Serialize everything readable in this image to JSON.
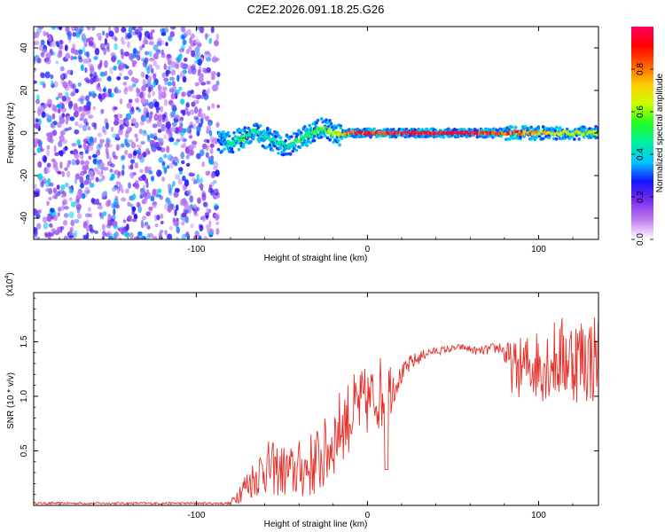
{
  "figure_title": "C2E2.2026.091.18.25.G26",
  "colors": {
    "snr_line": "#e8302a",
    "background": "#ffffff",
    "axis": "#000000",
    "spectrogram_scatter": "#6a1bd8"
  },
  "chart_data": [
    {
      "type": "heatmap",
      "name": "spectrogram",
      "title": "C2E2.2026.091.18.25.G26",
      "xlabel": "Height of straight line (km)",
      "ylabel": "Frequency (Hz)",
      "xlim": [
        -195,
        135
      ],
      "ylim": [
        -50,
        50
      ],
      "xticks": [
        -100,
        0,
        100
      ],
      "yticks": [
        -40,
        -20,
        0,
        20,
        40
      ],
      "noise_region": {
        "x_from": -195,
        "x_to": -87,
        "freq_from": -50,
        "freq_to": 50
      },
      "signal_track": [
        {
          "x": -87,
          "f": -4,
          "amp": 0.3
        },
        {
          "x": -80,
          "f": -5,
          "amp": 0.45
        },
        {
          "x": -72,
          "f": -2,
          "amp": 0.55
        },
        {
          "x": -66,
          "f": 1,
          "amp": 0.5
        },
        {
          "x": -60,
          "f": -2,
          "amp": 0.45
        },
        {
          "x": -52,
          "f": -5,
          "amp": 0.5
        },
        {
          "x": -46,
          "f": -6,
          "amp": 0.45
        },
        {
          "x": -40,
          "f": -3,
          "amp": 0.55
        },
        {
          "x": -34,
          "f": -1,
          "amp": 0.5
        },
        {
          "x": -28,
          "f": 2,
          "amp": 0.55
        },
        {
          "x": -22,
          "f": 1,
          "amp": 0.6
        },
        {
          "x": -16,
          "f": -1,
          "amp": 0.7
        },
        {
          "x": -8,
          "f": 0,
          "amp": 0.85
        },
        {
          "x": 0,
          "f": 0,
          "amp": 0.9
        },
        {
          "x": 20,
          "f": 0,
          "amp": 0.95
        },
        {
          "x": 60,
          "f": 0,
          "amp": 0.95
        },
        {
          "x": 85,
          "f": 0,
          "amp": 0.85
        },
        {
          "x": 105,
          "f": 0,
          "amp": 0.7
        },
        {
          "x": 135,
          "f": 0,
          "amp": 0.65
        }
      ],
      "colorbar": {
        "label": "Normalized spectral amplitude",
        "range": [
          0,
          1
        ],
        "ticks": [
          "0.0",
          "0.2",
          "0.4",
          "0.6",
          "0.8"
        ],
        "tick_values": [
          0,
          0.2,
          0.4,
          0.6,
          0.8
        ],
        "stops": [
          "#ffffff",
          "#c07ef0",
          "#7a2cf0",
          "#1515ff",
          "#00c8ff",
          "#00f0a0",
          "#20ff20",
          "#c8ff00",
          "#ffcc00",
          "#ff6000",
          "#ff0000",
          "#ff0060"
        ]
      }
    },
    {
      "type": "line",
      "name": "snr",
      "title": "",
      "xlabel": "Height of straight line (km)",
      "ylabel": "SNR (10 * v/v)",
      "exponent_label": "(x10",
      "exponent_power": "4",
      "exponent_close": ")",
      "xlim": [
        -195,
        135
      ],
      "ylim": [
        0,
        1.95
      ],
      "xticks": [
        -100,
        0,
        100
      ],
      "yticks": [
        0.5,
        1.0,
        1.5
      ],
      "ytick_labels": [
        "0.5",
        "1.0",
        "1.5"
      ],
      "series": [
        {
          "name": "SNR",
          "unit": "x10^4",
          "envelope": [
            {
              "x": -195,
              "mean": 0.02,
              "amp": 0.01
            },
            {
              "x": -80,
              "mean": 0.02,
              "amp": 0.01
            },
            {
              "x": -75,
              "mean": 0.12,
              "amp": 0.1
            },
            {
              "x": -60,
              "mean": 0.35,
              "amp": 0.25
            },
            {
              "x": -45,
              "mean": 0.3,
              "amp": 0.25
            },
            {
              "x": -35,
              "mean": 0.35,
              "amp": 0.3
            },
            {
              "x": -25,
              "mean": 0.45,
              "amp": 0.35
            },
            {
              "x": -15,
              "mean": 0.75,
              "amp": 0.35
            },
            {
              "x": -5,
              "mean": 0.9,
              "amp": 0.35
            },
            {
              "x": 5,
              "mean": 1.0,
              "amp": 0.3
            },
            {
              "x": 10,
              "mean": 1.05,
              "amp": 0.4
            },
            {
              "x": 18,
              "mean": 1.15,
              "amp": 0.1
            },
            {
              "x": 25,
              "mean": 1.3,
              "amp": 0.08
            },
            {
              "x": 35,
              "mean": 1.4,
              "amp": 0.04
            },
            {
              "x": 55,
              "mean": 1.45,
              "amp": 0.03
            },
            {
              "x": 65,
              "mean": 1.41,
              "amp": 0.04
            },
            {
              "x": 78,
              "mean": 1.45,
              "amp": 0.06
            },
            {
              "x": 85,
              "mean": 1.25,
              "amp": 0.25
            },
            {
              "x": 100,
              "mean": 1.3,
              "amp": 0.35
            },
            {
              "x": 115,
              "mean": 1.35,
              "amp": 0.4
            },
            {
              "x": 135,
              "mean": 1.35,
              "amp": 0.45
            }
          ]
        }
      ]
    }
  ]
}
